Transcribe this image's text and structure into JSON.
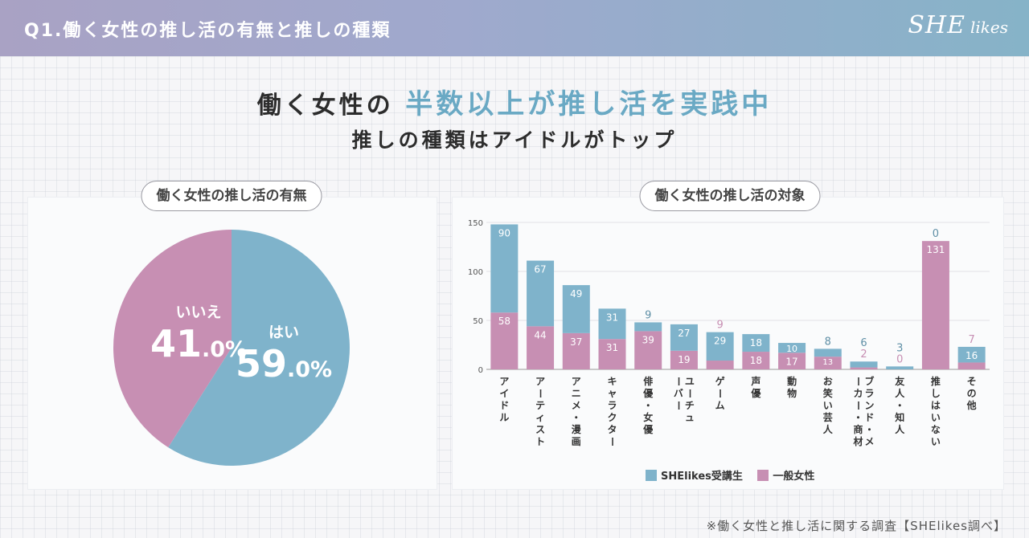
{
  "header": {
    "title": "Q1.働く女性の推し活の有無と推しの種類",
    "logo_mark": "SHE",
    "logo_word": "likes"
  },
  "headline": {
    "line1_prefix": "働く女性の",
    "line1_accent": "半数以上が推し活を実践中",
    "line2": "推しの種類はアイドルがトップ"
  },
  "colors": {
    "she": "#7fb3cb",
    "general": "#c78fb3",
    "accent": "#6aa9c4"
  },
  "pie_panel": {
    "title": "働く女性の推し活の有無",
    "yes_name": "はい",
    "yes_int": "59",
    "yes_dec": ".0%",
    "no_name": "いいえ",
    "no_int": "41",
    "no_dec": ".0%"
  },
  "bar_panel": {
    "title": "働く女性の推し活の対象"
  },
  "legend": {
    "she": "SHElikes受講生",
    "general": "一般女性"
  },
  "footnote": "※働く女性と推し活に関する調査【SHElikes調べ】",
  "chart_data": [
    {
      "type": "pie",
      "title": "働く女性の推し活の有無",
      "slices": [
        {
          "label": "はい",
          "value": 59.0
        },
        {
          "label": "いいえ",
          "value": 41.0
        }
      ]
    },
    {
      "type": "bar",
      "stacked": true,
      "title": "働く女性の推し活の対象",
      "categories": [
        "アイドル",
        "アーティスト",
        "アニメ・漫画",
        "キャラクター",
        "俳優・女優",
        "ユーチューバー",
        "ゲーム",
        "声優",
        "動物",
        "お笑い芸人",
        "ブランド・メーカー・商材",
        "友人・知人",
        "推しはいない",
        "その他"
      ],
      "series": [
        {
          "name": "一般女性",
          "values": [
            58,
            44,
            37,
            31,
            39,
            19,
            9,
            18,
            17,
            13,
            2,
            0,
            131,
            7
          ]
        },
        {
          "name": "SHElikes受講生",
          "values": [
            90,
            67,
            49,
            31,
            9,
            27,
            29,
            18,
            10,
            8,
            6,
            3,
            0,
            16
          ]
        }
      ],
      "yticks": [
        0,
        50,
        100,
        150
      ],
      "ylim": [
        0,
        150
      ],
      "grid": true,
      "legend": "bottom"
    }
  ]
}
